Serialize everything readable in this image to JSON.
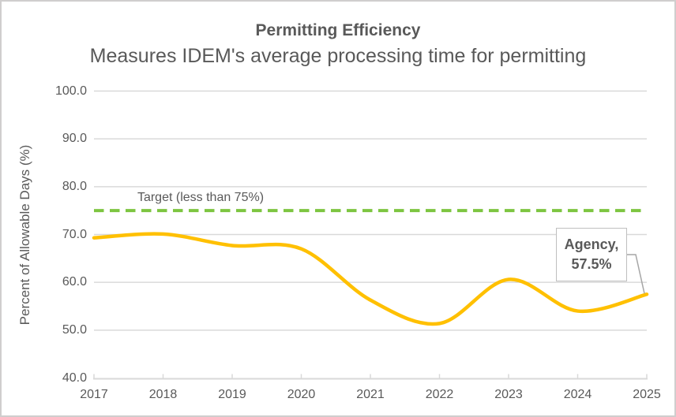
{
  "header": {
    "title": "Permitting Efficiency",
    "subtitle": "Measures IDEM's average processing time for permitting"
  },
  "chart_data": {
    "type": "line",
    "title": "Permitting Efficiency",
    "subtitle": "Measures IDEM's average processing time for permitting",
    "categories": [
      "2017",
      "2018",
      "2019",
      "2020",
      "2021",
      "2022",
      "2023",
      "2024",
      "2025"
    ],
    "series": [
      {
        "name": "Agency",
        "style": "smooth-line",
        "color": "#FFC000",
        "values": [
          69.3,
          70.1,
          67.7,
          67.0,
          56.3,
          51.4,
          60.6,
          54.0,
          57.5
        ]
      },
      {
        "name": "Target",
        "style": "dashed-horizontal-line",
        "color": "#7DC540",
        "value": 75
      }
    ],
    "xlabel": "",
    "ylabel": "Percent of Allowable Days (%)",
    "ylim": [
      40,
      100
    ],
    "yticks": [
      40,
      50,
      60,
      70,
      80,
      90,
      100
    ],
    "ytick_labels": [
      "40.0",
      "50.0",
      "60.0",
      "70.0",
      "80.0",
      "90.0",
      "100.0"
    ],
    "grid": true,
    "legend_position": "none",
    "annotations": {
      "target_label": "Target (less than 75%)",
      "callout_series": "Agency,",
      "callout_value_label": "57.5%",
      "callout_value": 57.5,
      "callout_year": "2025"
    }
  },
  "colors": {
    "text": "#595959",
    "grid": "#D9D9D9",
    "axis": "#D9D9D9",
    "agency_line": "#FFC000",
    "target_line": "#7DC540",
    "callout_border": "#BFBFBF",
    "leader_line": "#A6A6A6",
    "window_border": "#D0CECE"
  }
}
